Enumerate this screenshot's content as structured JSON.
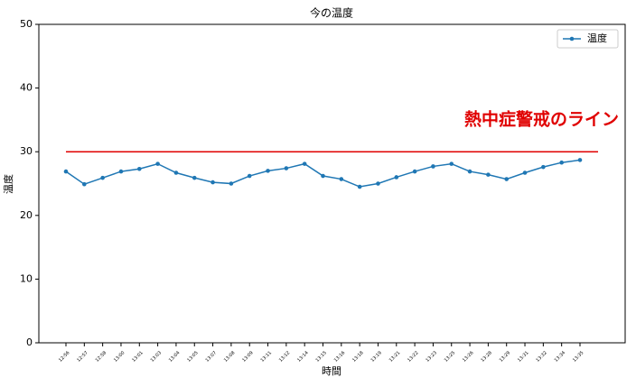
{
  "chart_data": {
    "type": "line",
    "title": "今の温度",
    "xlabel": "時間",
    "ylabel": "温度",
    "categories": [
      "12:56",
      "12:57",
      "12:58",
      "13:00",
      "13:01",
      "13:03",
      "13:04",
      "13:05",
      "13:07",
      "13:08",
      "13:09",
      "13:11",
      "13:12",
      "13:14",
      "13:15",
      "13:16",
      "13:18",
      "13:19",
      "13:21",
      "13:22",
      "13:23",
      "13:25",
      "13:26",
      "13:28",
      "13:29",
      "13:31",
      "13:32",
      "13:34",
      "13:35"
    ],
    "series": [
      {
        "name": "温度",
        "color": "#1f77b4",
        "values": [
          26.9,
          24.9,
          25.9,
          26.9,
          27.3,
          28.1,
          26.7,
          25.9,
          25.2,
          25.0,
          26.2,
          27.0,
          27.4,
          28.1,
          26.2,
          25.7,
          24.5,
          25.0,
          26.0,
          26.9,
          27.7,
          28.1,
          26.9,
          26.4,
          25.7,
          26.7,
          27.6,
          28.3,
          28.7
        ]
      }
    ],
    "hline": {
      "value": 30,
      "color": "#e00000"
    },
    "annotation": "熱中症警戒のライン",
    "ylim": [
      0,
      50
    ],
    "yticks": [
      0,
      10,
      20,
      30,
      40,
      50
    ],
    "legend": "upper right"
  }
}
